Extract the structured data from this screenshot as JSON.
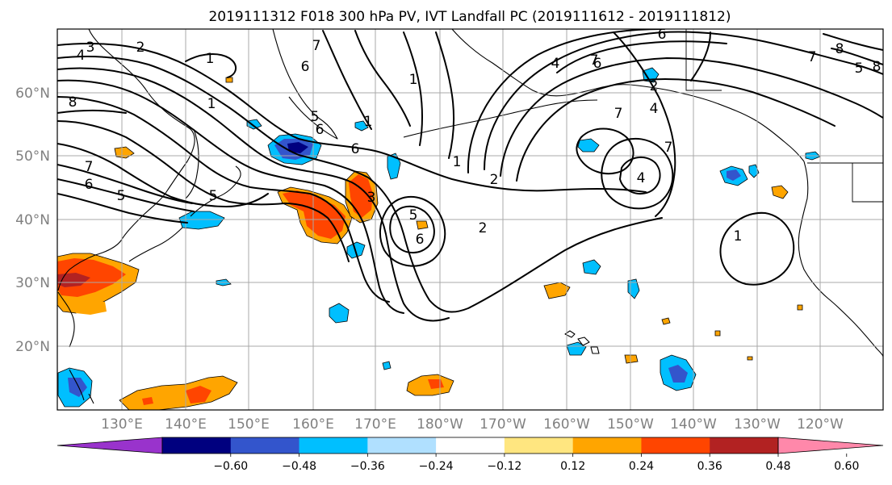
{
  "title": "2019111312 F018 300 hPa PV, IVT Landfall PC (2019111612 - 2019111812)",
  "map": {
    "lat_labels": [
      "60°N",
      "50°N",
      "40°N",
      "30°N",
      "20°N"
    ],
    "lon_labels": [
      "130°E",
      "140°E",
      "150°E",
      "160°E",
      "170°E",
      "180°W",
      "170°W",
      "160°W",
      "150°W",
      "140°W",
      "130°W",
      "120°W"
    ],
    "contour_labels": [
      "3",
      "4",
      "2",
      "1",
      "1",
      "7",
      "6",
      "5",
      "6",
      "7",
      "5",
      "6",
      "1",
      "1",
      "2",
      "1",
      "6",
      "5",
      "6",
      "2",
      "7",
      "6",
      "7",
      "4",
      "2",
      "4",
      "7",
      "5",
      "8",
      "7",
      "3",
      "5",
      "4",
      "8",
      "6",
      "1",
      "8"
    ]
  },
  "colorbar": {
    "ticks": [
      "−0.60",
      "−0.48",
      "−0.36",
      "−0.24",
      "−0.12",
      "0.12",
      "0.24",
      "0.36",
      "0.48",
      "0.60"
    ],
    "colors": [
      "#9933cc",
      "#00007f",
      "#3355cc",
      "#00bfff",
      "#b0e0ff",
      "#ffffff",
      "#ffe680",
      "#ffa500",
      "#ff4500",
      "#b22222",
      "#ff88aa"
    ]
  },
  "colors": {
    "grid": "#a8a8a8",
    "label": "#808080"
  }
}
